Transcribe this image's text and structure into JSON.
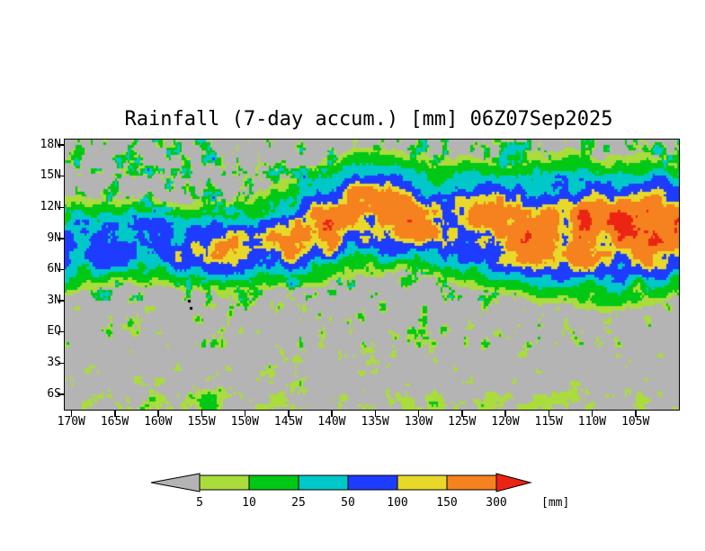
{
  "chart_data": {
    "type": "heatmap",
    "title": "Rainfall (7-day accum.) [mm] 06Z07Sep2025",
    "variable": "Rainfall 7-day accumulation",
    "valid_time_label": "06Z07Sep2025",
    "grid_on": false,
    "background_color": "#b4b4b4",
    "grid_resolution_deg": 0.25,
    "y_axis": {
      "tick_labels": [
        "18N",
        "15N",
        "12N",
        "9N",
        "6N",
        "3N",
        "EQ",
        "3S",
        "6S"
      ],
      "tick_values": [
        18,
        15,
        12,
        9,
        6,
        3,
        0,
        -3,
        -6
      ],
      "range": [
        -7.5,
        18.5
      ]
    },
    "x_axis": {
      "tick_labels": [
        "170W",
        "165W",
        "160W",
        "155W",
        "150W",
        "145W",
        "140W",
        "135W",
        "130W",
        "125W",
        "120W",
        "115W",
        "110W",
        "105W"
      ],
      "tick_values": [
        170,
        165,
        160,
        155,
        150,
        145,
        140,
        135,
        130,
        125,
        120,
        115,
        110,
        105
      ],
      "range_west": [
        170.75,
        100
      ]
    },
    "palette": [
      {
        "max": 5,
        "color": "#b4b4b4",
        "name": "gray-below-5"
      },
      {
        "max": 10,
        "color": "#aadc3c",
        "name": "yellow-green-5-10"
      },
      {
        "max": 25,
        "color": "#00c814",
        "name": "green-10-25"
      },
      {
        "max": 50,
        "color": "#00c8c8",
        "name": "cyan-25-50"
      },
      {
        "max": 100,
        "color": "#1e3cff",
        "name": "blue-50-100"
      },
      {
        "max": 150,
        "color": "#e8d82a",
        "name": "yellow-100-150"
      },
      {
        "max": 300,
        "color": "#f5821e",
        "name": "orange-150-300"
      },
      {
        "max": null,
        "color": "#ec2414",
        "name": "red-above-300"
      }
    ],
    "colorbar": {
      "tick_labels": [
        "5",
        "10",
        "25",
        "50",
        "100",
        "150",
        "300"
      ],
      "levels": [
        5,
        10,
        25,
        50,
        100,
        150,
        300
      ],
      "unit_label": "[mm]",
      "position": "bottom-center",
      "shape": "horizontal-arrow-bar"
    },
    "itcz_band": {
      "format": [
        "lon_w",
        "center_lat",
        "half_width_deg",
        "peak_mm"
      ],
      "control_points": [
        [
          171,
          8.3,
          2.8,
          110
        ],
        [
          163,
          8.8,
          2.6,
          100
        ],
        [
          157,
          7.8,
          2.4,
          130
        ],
        [
          151,
          8.0,
          2.6,
          190
        ],
        [
          146,
          8.6,
          2.4,
          170
        ],
        [
          142,
          9.8,
          2.8,
          260
        ],
        [
          137,
          11.2,
          3.0,
          300
        ],
        [
          132,
          11.3,
          3.0,
          260
        ],
        [
          127,
          10.6,
          3.2,
          185
        ],
        [
          122,
          10.2,
          3.4,
          265
        ],
        [
          116,
          10.0,
          3.6,
          330
        ],
        [
          109,
          9.8,
          3.8,
          340
        ],
        [
          103,
          9.9,
          3.6,
          310
        ],
        [
          100,
          10.0,
          3.4,
          285
        ]
      ]
    },
    "north_skirt": {
      "east_of_lon_w": 145,
      "offset_deg": 3.3,
      "width_deg": 2.2,
      "peak_mm": 45
    },
    "south_band": {
      "center_lat": -6.8,
      "width_deg": 1.4,
      "peak_mm": 22
    },
    "speckle_peak_mm": {
      "north": 38,
      "tropics": 14,
      "south": 7
    },
    "islands": [
      {
        "lon_w": 156.5,
        "lat": 3.0
      },
      {
        "lon_w": 156.2,
        "lat": 2.3
      }
    ]
  }
}
